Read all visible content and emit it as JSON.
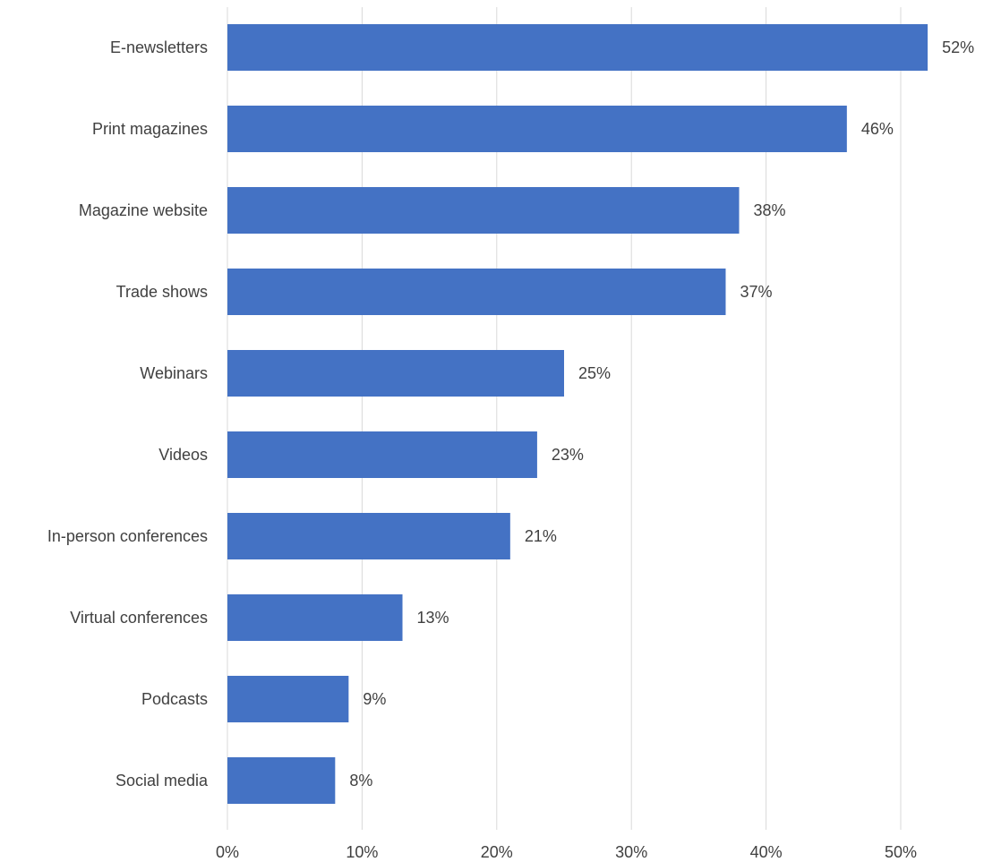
{
  "chart_data": {
    "type": "bar",
    "orientation": "horizontal",
    "title": "",
    "xlabel": "",
    "ylabel": "",
    "categories": [
      "E-newsletters",
      "Print magazines",
      "Magazine website",
      "Trade shows",
      "Webinars",
      "Videos",
      "In-person conferences",
      "Virtual conferences",
      "Podcasts",
      "Social media"
    ],
    "values": [
      52,
      46,
      38,
      37,
      25,
      23,
      21,
      13,
      9,
      8
    ],
    "value_labels": [
      "52%",
      "46%",
      "38%",
      "37%",
      "25%",
      "23%",
      "21%",
      "13%",
      "9%",
      "8%"
    ],
    "xlim": [
      0,
      50
    ],
    "x_ticks": [
      0,
      10,
      20,
      30,
      40,
      50
    ],
    "x_tick_labels": [
      "0%",
      "10%",
      "20%",
      "30%",
      "40%",
      "50%"
    ],
    "grid": true,
    "legend": "none",
    "bar_color": "#4472C4",
    "grid_color": "#D9D9D9",
    "text_color": "#404040"
  }
}
